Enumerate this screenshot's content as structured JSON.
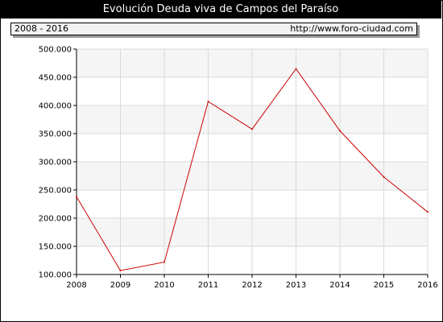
{
  "header": {
    "title": "Evolución Deuda viva de Campos del Paraíso",
    "period": "2008 - 2016",
    "site": "http://www.foro-ciudad.com"
  },
  "colors": {
    "line": "#cc0000",
    "band": "#f5f5f5",
    "grid": "#d9d9d9",
    "axis": "#000000"
  },
  "chart_data": {
    "type": "line",
    "title": "Evolución Deuda viva de Campos del Paraíso",
    "xlabel": "",
    "ylabel": "",
    "x": [
      "2008",
      "2009",
      "2010",
      "2011",
      "2012",
      "2013",
      "2014",
      "2015",
      "2016"
    ],
    "values": [
      238000,
      107000,
      122000,
      407000,
      358000,
      465000,
      355000,
      273000,
      211000
    ],
    "ylim": [
      100000,
      500000
    ],
    "y_ticks": [
      100000,
      150000,
      200000,
      250000,
      300000,
      350000,
      400000,
      450000,
      500000
    ],
    "y_tick_labels": [
      "100.000",
      "150.000",
      "200.000",
      "250.000",
      "300.000",
      "350.000",
      "400.000",
      "450.000",
      "500.000"
    ],
    "grid": true,
    "legend": "none"
  }
}
